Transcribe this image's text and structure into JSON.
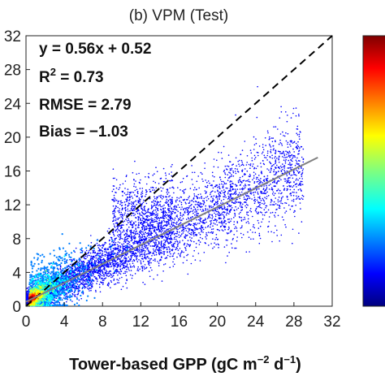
{
  "chart_data": {
    "type": "scatter",
    "title": "(b) VPM (Test)",
    "xlabel": "Tower-based GPP (gC m^-2 d^-1)",
    "xlabel_main": "Tower-based GPP (gC m",
    "xlabel_exp1": "−2",
    "xlabel_mid": " d",
    "xlabel_exp2": "−1",
    "xlabel_end": ")",
    "ylabel": "",
    "xlim": [
      0,
      32
    ],
    "ylim": [
      0,
      32
    ],
    "x_ticks": [
      "0",
      "4",
      "8",
      "12",
      "16",
      "20",
      "24",
      "28",
      "32"
    ],
    "y_ticks": [
      "0",
      "4",
      "8",
      "12",
      "16",
      "20",
      "24",
      "28",
      "32"
    ],
    "grid": false,
    "one_to_one_line": {
      "style": "dashed",
      "color": "#000000",
      "from": [
        0,
        0
      ],
      "to": [
        32,
        32
      ]
    },
    "fit_line": {
      "slope": 0.56,
      "intercept": 0.52,
      "x_range": [
        0,
        30.5
      ],
      "color": "#808080"
    },
    "stats": {
      "equation": "y = 0.56x + 0.52",
      "r2_prefix": "R",
      "r2_exp": "2",
      "r2_value": " = 0.73",
      "rmse": "RMSE = 2.79",
      "bias": "Bias = −1.03"
    },
    "density_colormap": [
      "#00007f",
      "#0000ff",
      "#007fff",
      "#00ffff",
      "#7fff7f",
      "#ffff00",
      "#ff7f00",
      "#ff0000",
      "#7f0000"
    ],
    "colorbar": {
      "ticks_visible": false
    }
  }
}
